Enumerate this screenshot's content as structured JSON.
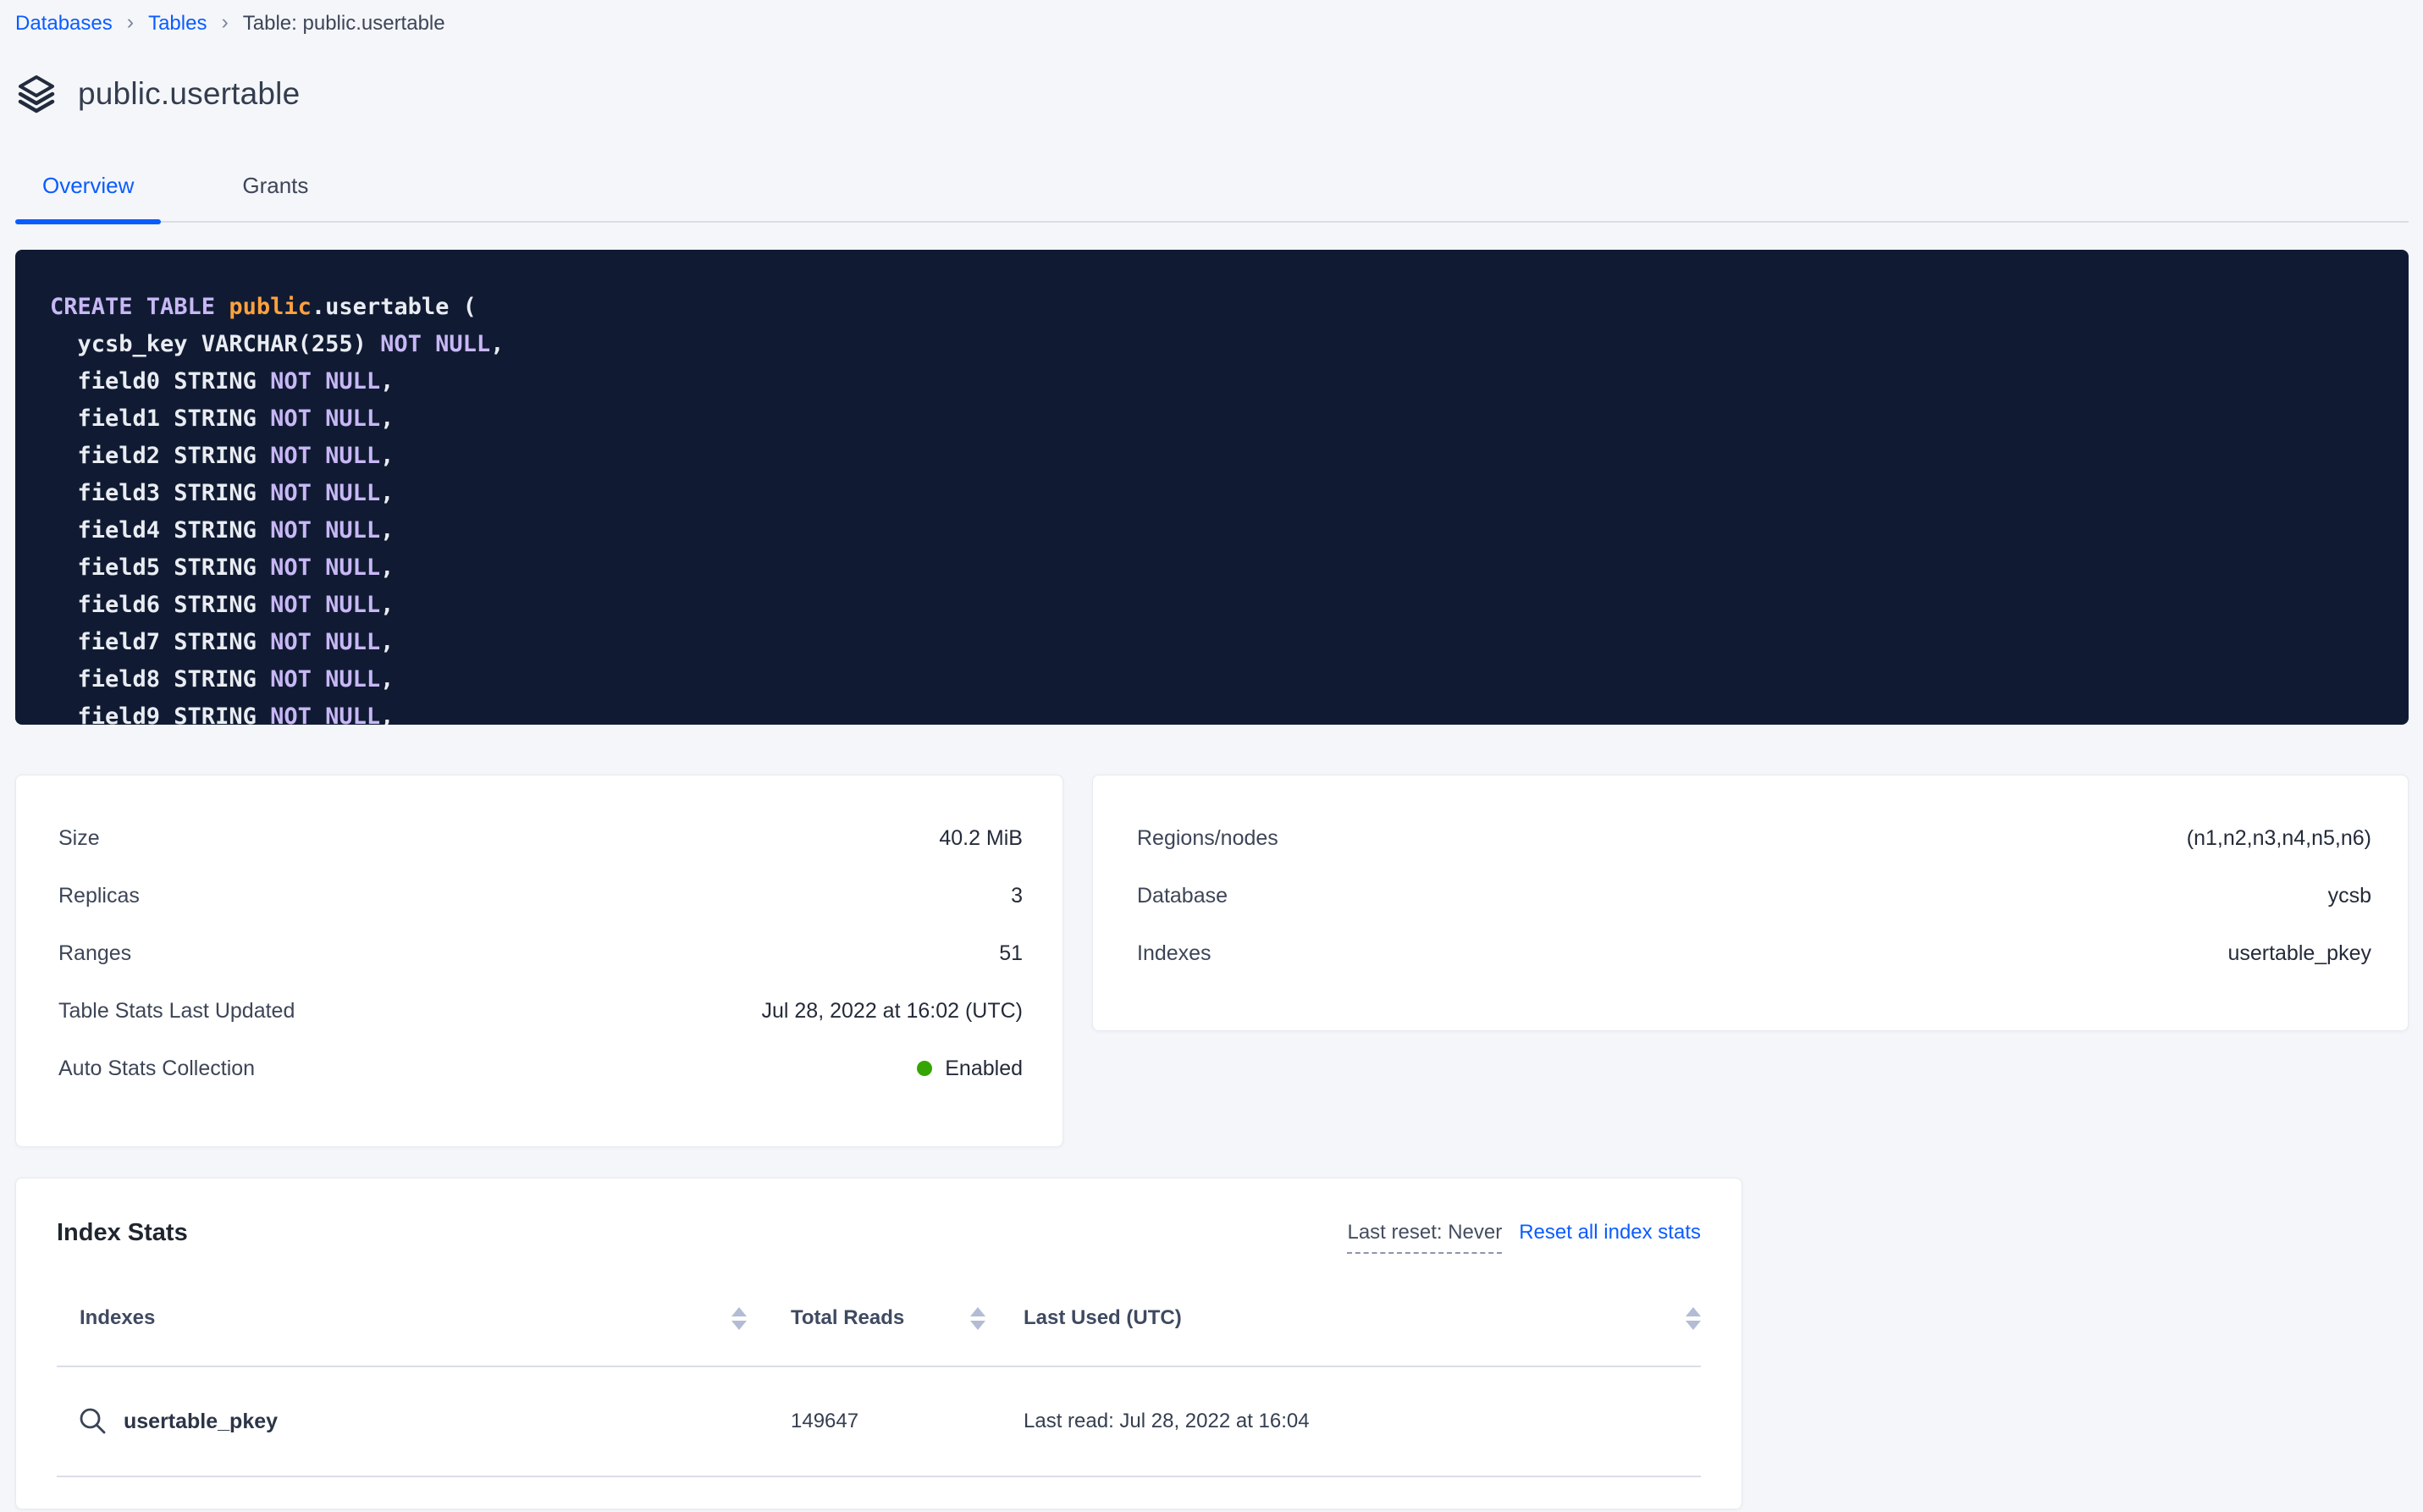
{
  "colors": {
    "accent": "#0b5cff",
    "page_background": "#f4f6fa",
    "code_background": "#101b33",
    "code_keyword": "#c8b7f5",
    "code_schema": "#ffa13d",
    "code_text": "#e9ecf2",
    "enabled_green": "#35a505"
  },
  "breadcrumb": {
    "separator": "›",
    "items": [
      {
        "label": "Databases"
      },
      {
        "label": "Tables"
      }
    ],
    "current": "Table: public.usertable"
  },
  "header": {
    "title": "public.usertable"
  },
  "tabs": {
    "overview": "Overview",
    "grants": "Grants"
  },
  "sql": {
    "lines": [
      [
        {
          "t": "CREATE TABLE ",
          "c": "kw"
        },
        {
          "t": "public",
          "c": "schema"
        },
        {
          "t": ".usertable (",
          "c": "plain"
        }
      ],
      [
        {
          "t": "  ycsb_key VARCHAR(255) ",
          "c": "plain"
        },
        {
          "t": "NOT NULL",
          "c": "kw"
        },
        {
          "t": ",",
          "c": "plain"
        }
      ],
      [
        {
          "t": "  field0 STRING ",
          "c": "plain"
        },
        {
          "t": "NOT NULL",
          "c": "kw"
        },
        {
          "t": ",",
          "c": "plain"
        }
      ],
      [
        {
          "t": "  field1 STRING ",
          "c": "plain"
        },
        {
          "t": "NOT NULL",
          "c": "kw"
        },
        {
          "t": ",",
          "c": "plain"
        }
      ],
      [
        {
          "t": "  field2 STRING ",
          "c": "plain"
        },
        {
          "t": "NOT NULL",
          "c": "kw"
        },
        {
          "t": ",",
          "c": "plain"
        }
      ],
      [
        {
          "t": "  field3 STRING ",
          "c": "plain"
        },
        {
          "t": "NOT NULL",
          "c": "kw"
        },
        {
          "t": ",",
          "c": "plain"
        }
      ],
      [
        {
          "t": "  field4 STRING ",
          "c": "plain"
        },
        {
          "t": "NOT NULL",
          "c": "kw"
        },
        {
          "t": ",",
          "c": "plain"
        }
      ],
      [
        {
          "t": "  field5 STRING ",
          "c": "plain"
        },
        {
          "t": "NOT NULL",
          "c": "kw"
        },
        {
          "t": ",",
          "c": "plain"
        }
      ],
      [
        {
          "t": "  field6 STRING ",
          "c": "plain"
        },
        {
          "t": "NOT NULL",
          "c": "kw"
        },
        {
          "t": ",",
          "c": "plain"
        }
      ],
      [
        {
          "t": "  field7 STRING ",
          "c": "plain"
        },
        {
          "t": "NOT NULL",
          "c": "kw"
        },
        {
          "t": ",",
          "c": "plain"
        }
      ],
      [
        {
          "t": "  field8 STRING ",
          "c": "plain"
        },
        {
          "t": "NOT NULL",
          "c": "kw"
        },
        {
          "t": ",",
          "c": "plain"
        }
      ],
      [
        {
          "t": "  field9 STRING ",
          "c": "plain"
        },
        {
          "t": "NOT NULL",
          "c": "kw"
        },
        {
          "t": ",",
          "c": "plain"
        }
      ]
    ]
  },
  "details": {
    "left": [
      {
        "label": "Size",
        "value": "40.2 MiB"
      },
      {
        "label": "Replicas",
        "value": "3"
      },
      {
        "label": "Ranges",
        "value": "51"
      },
      {
        "label": "Table Stats Last Updated",
        "value": "Jul 28, 2022 at 16:02 (UTC)"
      },
      {
        "label": "Auto Stats Collection",
        "value": "Enabled",
        "status": "green"
      }
    ],
    "right": [
      {
        "label": "Regions/nodes",
        "value": "(n1,n2,n3,n4,n5,n6)"
      },
      {
        "label": "Database",
        "value": "ycsb"
      },
      {
        "label": "Indexes",
        "value": "usertable_pkey"
      }
    ]
  },
  "index_stats": {
    "title": "Index Stats",
    "last_reset": "Last reset: Never",
    "reset_link": "Reset all index stats",
    "columns": [
      "Indexes",
      "Total Reads",
      "Last Used (UTC)"
    ],
    "rows": [
      {
        "name": "usertable_pkey",
        "total_reads": "149647",
        "last_used": "Last read: Jul 28, 2022 at 16:04"
      }
    ]
  }
}
